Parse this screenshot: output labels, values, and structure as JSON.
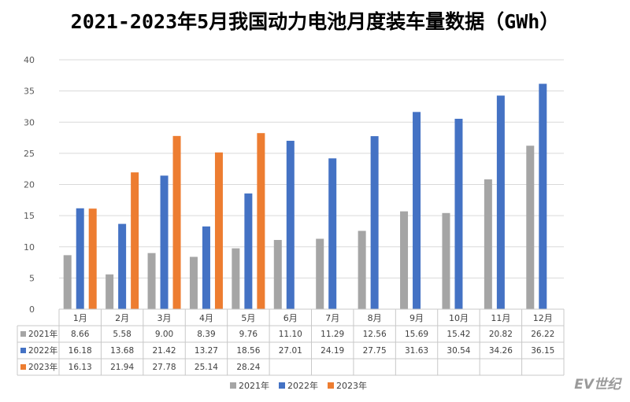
{
  "title": "2021-2023年5月我国动力电池月度装车量数据（GWh）",
  "watermark": "EV世纪",
  "colors": {
    "s2021": "#a5a5a5",
    "s2022": "#4472c4",
    "s2023": "#ed7d31",
    "grid": "#d9d9d9",
    "table_border": "#c8c8c8"
  },
  "chart_data": {
    "type": "bar",
    "title": "2021-2023年5月我国动力电池月度装车量数据（GWh）",
    "xlabel": "",
    "ylabel": "",
    "ylim": [
      0,
      40
    ],
    "yticks": [
      0,
      5,
      10,
      15,
      20,
      25,
      30,
      35,
      40
    ],
    "grid": true,
    "legend": "bottom",
    "categories": [
      "1月",
      "2月",
      "3月",
      "4月",
      "5月",
      "6月",
      "7月",
      "8月",
      "9月",
      "10月",
      "11月",
      "12月"
    ],
    "series": [
      {
        "name": "2021年",
        "color": "#a5a5a5",
        "values": [
          8.66,
          5.58,
          9.0,
          8.39,
          9.76,
          11.1,
          11.29,
          12.56,
          15.69,
          15.42,
          20.82,
          26.22
        ],
        "labels": [
          "8.66",
          "5.58",
          "9.00",
          "8.39",
          "9.76",
          "11.10",
          "11.29",
          "12.56",
          "15.69",
          "15.42",
          "20.82",
          "26.22"
        ]
      },
      {
        "name": "2022年",
        "color": "#4472c4",
        "values": [
          16.18,
          13.68,
          21.42,
          13.27,
          18.56,
          27.01,
          24.19,
          27.75,
          31.63,
          30.54,
          34.26,
          36.15
        ],
        "labels": [
          "16.18",
          "13.68",
          "21.42",
          "13.27",
          "18.56",
          "27.01",
          "24.19",
          "27.75",
          "31.63",
          "30.54",
          "34.26",
          "36.15"
        ]
      },
      {
        "name": "2023年",
        "color": "#ed7d31",
        "values": [
          16.13,
          21.94,
          27.78,
          25.14,
          28.24,
          null,
          null,
          null,
          null,
          null,
          null,
          null
        ],
        "labels": [
          "16.13",
          "21.94",
          "27.78",
          "25.14",
          "28.24",
          "",
          "",
          "",
          "",
          "",
          "",
          ""
        ]
      }
    ]
  }
}
